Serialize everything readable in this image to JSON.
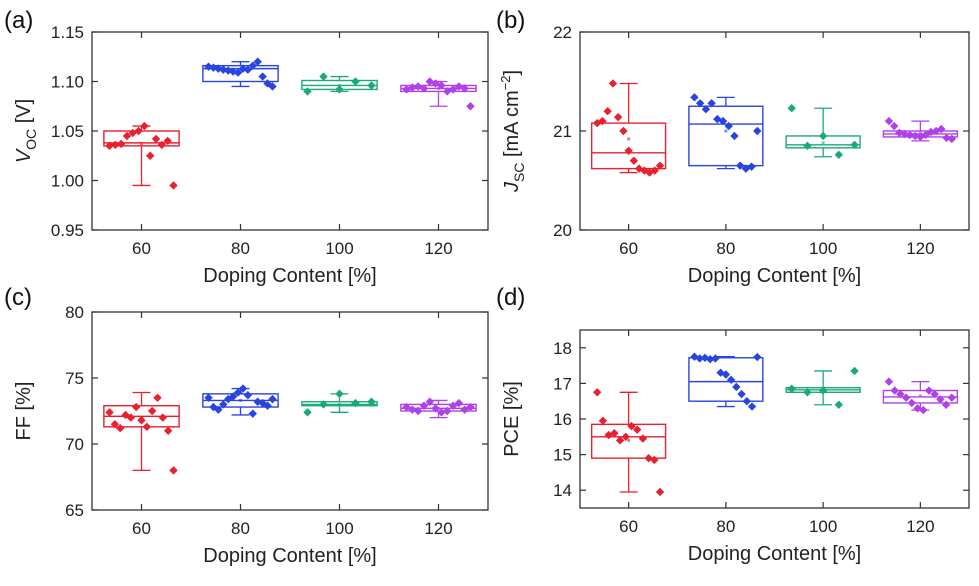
{
  "figure": {
    "categories": [
      "60",
      "80",
      "100",
      "120"
    ],
    "colors": [
      "#e8202f",
      "#2a44e0",
      "#1aaa7a",
      "#b040e8"
    ]
  },
  "chart_data": [
    {
      "panel_label": "(a)",
      "type": "box",
      "xlabel": "Doping Content [%]",
      "ylabel": {
        "base": "V",
        "sub": "OC",
        "unit": " [V]"
      },
      "ylim": [
        0.95,
        1.15
      ],
      "yticks": [
        "0.95",
        "1.00",
        "1.05",
        "1.10",
        "1.15"
      ],
      "categories": [
        "60",
        "80",
        "100",
        "120"
      ],
      "boxes": [
        {
          "q1": 1.035,
          "median": 1.038,
          "q3": 1.05,
          "whislo": 0.995,
          "whishi": 1.055,
          "mean": 1.037,
          "points": [
            1.035,
            1.036,
            1.037,
            1.045,
            1.048,
            1.05,
            1.055,
            1.025,
            1.042,
            1.036,
            1.04,
            0.995
          ]
        },
        {
          "q1": 1.1,
          "median": 1.113,
          "q3": 1.116,
          "whislo": 1.095,
          "whishi": 1.12,
          "mean": 1.11,
          "points": [
            1.115,
            1.114,
            1.113,
            1.112,
            1.111,
            1.11,
            1.109,
            1.113,
            1.112,
            1.116,
            1.12,
            1.105,
            1.098,
            1.095
          ]
        },
        {
          "q1": 1.092,
          "median": 1.096,
          "q3": 1.101,
          "whislo": 1.09,
          "whishi": 1.105,
          "mean": 1.096,
          "points": [
            1.09,
            1.105,
            1.092,
            1.1,
            1.096
          ]
        },
        {
          "q1": 1.09,
          "median": 1.093,
          "q3": 1.096,
          "whislo": 1.075,
          "whishi": 1.1,
          "mean": 1.093,
          "points": [
            1.092,
            1.094,
            1.095,
            1.093,
            1.1,
            1.098,
            1.096,
            1.09,
            1.092,
            1.095,
            1.093,
            1.075
          ]
        }
      ]
    },
    {
      "panel_label": "(b)",
      "type": "box",
      "xlabel": "Doping Content [%]",
      "ylabel": {
        "base": "J",
        "sub": "SC",
        "unit": " [mA cm",
        "sup": "−2",
        "end": "]"
      },
      "ylim": [
        20,
        22
      ],
      "yticks": [
        "20",
        "21",
        "22"
      ],
      "categories": [
        "60",
        "80",
        "100",
        "120"
      ],
      "boxes": [
        {
          "q1": 20.62,
          "median": 20.78,
          "q3": 21.08,
          "whislo": 20.58,
          "whishi": 21.48,
          "mean": 20.92,
          "points": [
            21.08,
            21.1,
            21.2,
            21.48,
            21.14,
            21.0,
            20.8,
            20.7,
            20.62,
            20.6,
            20.58,
            20.6,
            20.65
          ]
        },
        {
          "q1": 20.65,
          "median": 21.07,
          "q3": 21.25,
          "whislo": 20.62,
          "whishi": 21.34,
          "mean": 21.0,
          "points": [
            21.34,
            21.28,
            21.22,
            21.28,
            21.12,
            21.1,
            21.05,
            20.95,
            20.65,
            20.62,
            20.64,
            21.0
          ]
        },
        {
          "q1": 20.83,
          "median": 20.86,
          "q3": 20.95,
          "whislo": 20.74,
          "whishi": 21.23,
          "mean": 20.88,
          "points": [
            21.23,
            20.85,
            20.95,
            20.76,
            20.86
          ]
        },
        {
          "q1": 20.94,
          "median": 20.97,
          "q3": 21.0,
          "whislo": 20.9,
          "whishi": 21.1,
          "mean": 20.98,
          "points": [
            21.1,
            21.05,
            20.98,
            20.97,
            20.96,
            20.95,
            20.94,
            20.96,
            20.99,
            21.0,
            21.02,
            20.93,
            20.92
          ]
        }
      ]
    },
    {
      "panel_label": "(c)",
      "type": "box",
      "xlabel": "Doping Content [%]",
      "ylabel": {
        "base": "FF [%]"
      },
      "ylim": [
        65,
        80
      ],
      "yticks": [
        "65",
        "70",
        "75",
        "80"
      ],
      "categories": [
        "60",
        "80",
        "100",
        "120"
      ],
      "boxes": [
        {
          "q1": 71.3,
          "median": 72.1,
          "q3": 72.9,
          "whislo": 68.0,
          "whishi": 73.9,
          "mean": 72.0,
          "points": [
            72.4,
            71.5,
            71.2,
            72.2,
            72.0,
            72.8,
            71.8,
            71.3,
            72.5,
            73.5,
            72.0,
            71.0,
            68.0
          ]
        },
        {
          "q1": 72.8,
          "median": 73.3,
          "q3": 73.8,
          "whislo": 72.2,
          "whishi": 74.2,
          "mean": 73.3,
          "points": [
            73.5,
            72.8,
            72.6,
            73.0,
            73.4,
            73.6,
            73.9,
            74.2,
            73.7,
            72.3,
            73.2,
            73.1,
            72.9,
            73.4
          ]
        },
        {
          "q1": 72.9,
          "median": 73.0,
          "q3": 73.2,
          "whislo": 72.4,
          "whishi": 73.8,
          "mean": 73.0,
          "points": [
            72.4,
            73.0,
            73.8,
            73.1,
            73.2
          ]
        },
        {
          "q1": 72.5,
          "median": 72.7,
          "q3": 73.0,
          "whislo": 72.0,
          "whishi": 73.3,
          "mean": 72.7,
          "points": [
            72.8,
            72.6,
            72.5,
            72.9,
            73.2,
            72.7,
            72.4,
            72.5,
            72.9,
            73.1,
            72.6,
            72.8
          ]
        }
      ]
    },
    {
      "panel_label": "(d)",
      "type": "box",
      "xlabel": "Doping Content [%]",
      "ylabel": {
        "base": "PCE [%]"
      },
      "ylim": [
        13.5,
        18.5
      ],
      "yticks": [
        "14",
        "15",
        "16",
        "17",
        "18"
      ],
      "categories": [
        "60",
        "80",
        "100",
        "120"
      ],
      "boxes": [
        {
          "q1": 14.9,
          "median": 15.5,
          "q3": 15.85,
          "whislo": 13.95,
          "whishi": 16.75,
          "mean": 15.4,
          "points": [
            16.75,
            15.95,
            15.55,
            15.6,
            15.4,
            15.5,
            15.8,
            15.7,
            15.45,
            14.9,
            14.85,
            13.95
          ]
        },
        {
          "q1": 16.5,
          "median": 17.05,
          "q3": 17.72,
          "whislo": 16.35,
          "whishi": 17.75,
          "mean": 17.2,
          "points": [
            17.75,
            17.7,
            17.72,
            17.68,
            17.7,
            17.3,
            17.25,
            17.1,
            16.9,
            16.7,
            16.5,
            16.35,
            17.74
          ]
        },
        {
          "q1": 16.75,
          "median": 16.82,
          "q3": 16.88,
          "whislo": 16.4,
          "whishi": 17.35,
          "mean": 16.8,
          "points": [
            16.85,
            16.75,
            16.8,
            16.4,
            17.35
          ]
        },
        {
          "q1": 16.45,
          "median": 16.62,
          "q3": 16.8,
          "whislo": 16.25,
          "whishi": 17.05,
          "mean": 16.65,
          "points": [
            17.05,
            16.8,
            16.7,
            16.6,
            16.45,
            16.3,
            16.25,
            16.8,
            16.7,
            16.55,
            16.4,
            16.6
          ]
        }
      ]
    }
  ]
}
